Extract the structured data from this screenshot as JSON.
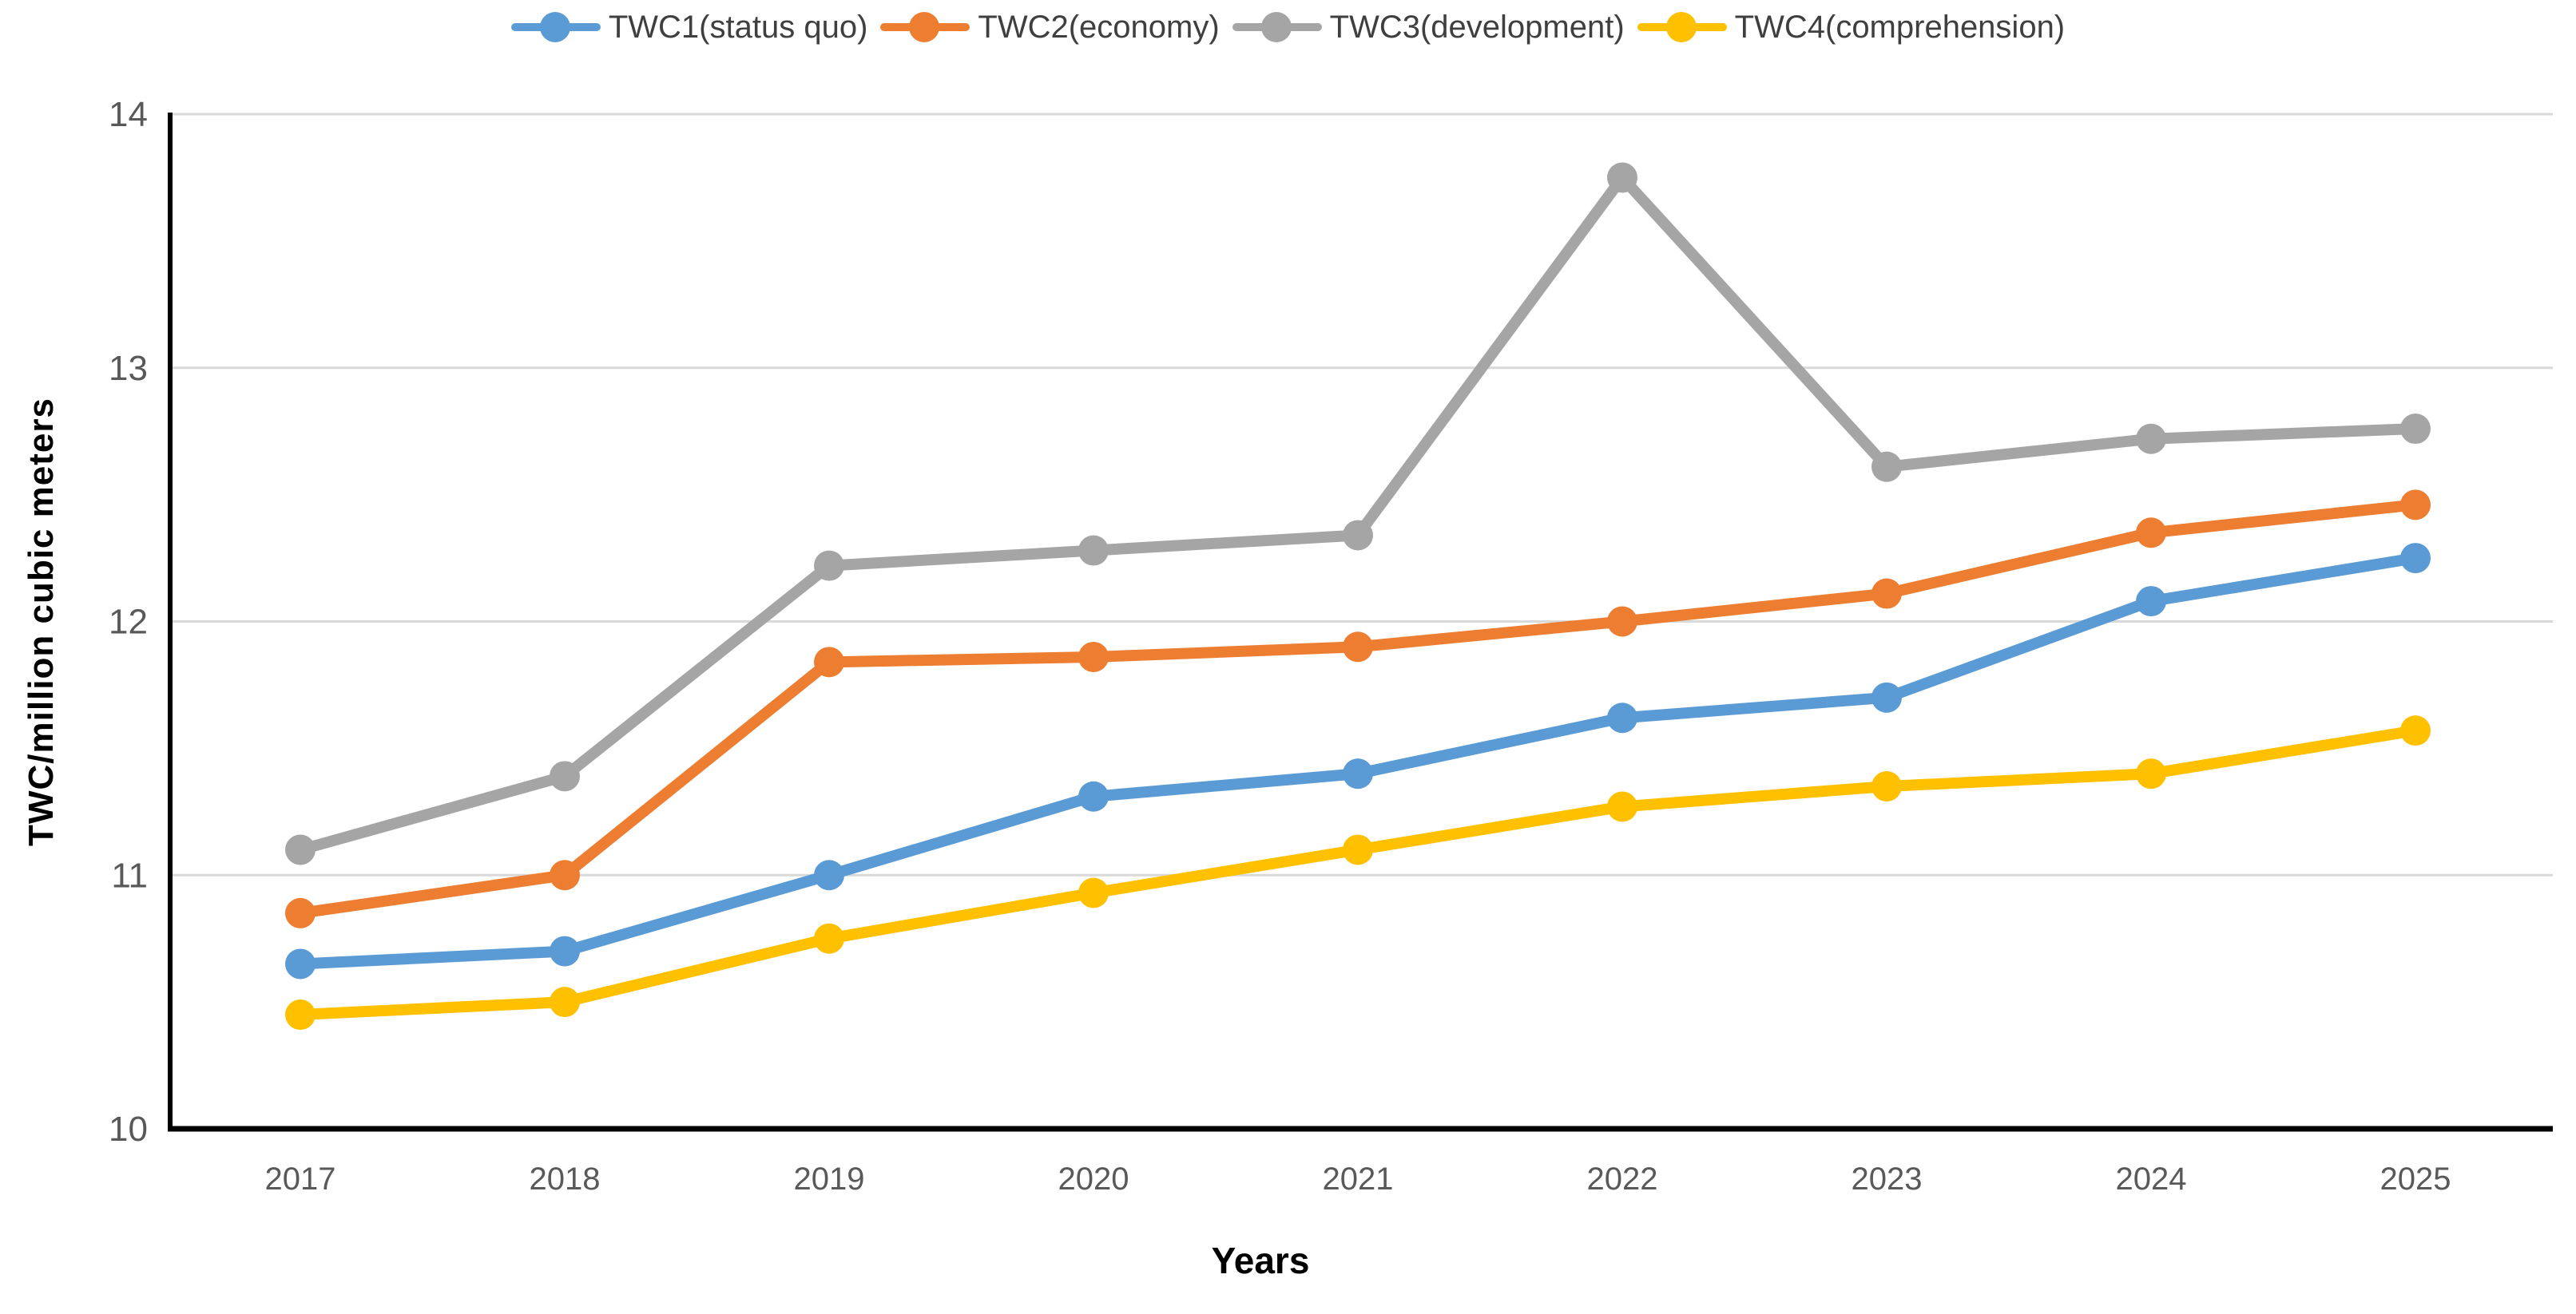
{
  "colors": {
    "background": "#FFFFFF",
    "gridline": "#D9D9D9",
    "axis": "#000000",
    "tick_text": "#595959",
    "legend_text": "#3F3F3F"
  },
  "chart_data": {
    "type": "line",
    "title": "",
    "xlabel": "Years",
    "ylabel": "TWC/million cubic meters",
    "categories": [
      "2017",
      "2018",
      "2019",
      "2020",
      "2021",
      "2022",
      "2023",
      "2024",
      "2025"
    ],
    "ylim": [
      10,
      14
    ],
    "yticks": [
      10,
      11,
      12,
      13,
      14
    ],
    "grid": "horizontal",
    "legend_position": "top",
    "marker": "circle",
    "series": [
      {
        "id": "twc1",
        "name": "TWC1(status quo)",
        "color": "#5B9BD5",
        "values": [
          10.65,
          10.7,
          11.0,
          11.31,
          11.4,
          11.62,
          11.7,
          12.08,
          12.25
        ]
      },
      {
        "id": "twc2",
        "name": "TWC2(economy)",
        "color": "#ED7D31",
        "values": [
          10.85,
          11.0,
          11.84,
          11.86,
          11.9,
          12.0,
          12.11,
          12.35,
          12.46
        ]
      },
      {
        "id": "twc3",
        "name": "TWC3(development)",
        "color": "#A5A5A5",
        "values": [
          11.1,
          11.39,
          12.22,
          12.28,
          12.34,
          13.75,
          12.61,
          12.72,
          12.76
        ]
      },
      {
        "id": "twc4",
        "name": "TWC4(comprehension)",
        "color": "#FFC000",
        "values": [
          10.45,
          10.5,
          10.75,
          10.93,
          11.1,
          11.27,
          11.35,
          11.4,
          11.57
        ]
      }
    ]
  }
}
